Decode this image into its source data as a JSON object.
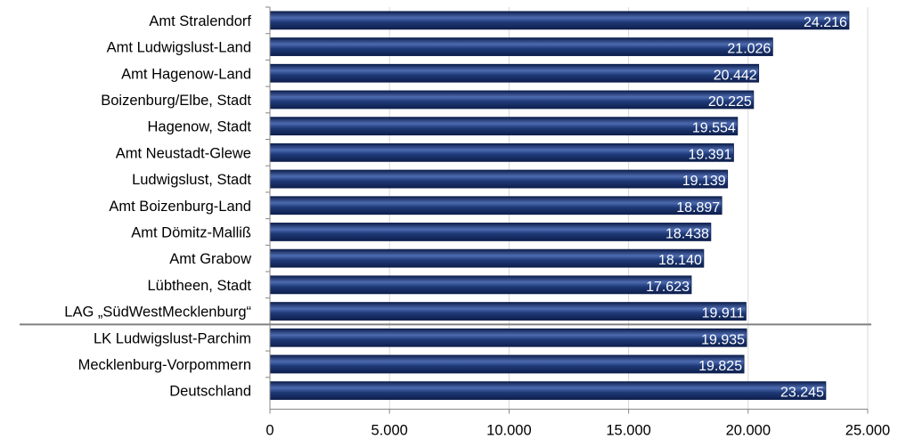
{
  "chart_data": {
    "type": "bar",
    "orientation": "horizontal",
    "categories": [
      "Amt Stralendorf",
      "Amt Ludwigslust-Land",
      "Amt Hagenow-Land",
      "Boizenburg/Elbe, Stadt",
      "Hagenow, Stadt",
      "Amt Neustadt-Glewe",
      "Ludwigslust, Stadt",
      "Amt Boizenburg-Land",
      "Amt Dömitz-Malliß",
      "Amt Grabow",
      "Lübtheen, Stadt",
      "LAG „SüdWestMecklenburg“",
      "LK Ludwigslust-Parchim",
      "Mecklenburg-Vorpommern",
      "Deutschland"
    ],
    "values": [
      24216,
      21026,
      20442,
      20225,
      19554,
      19391,
      19139,
      18897,
      18438,
      18140,
      17623,
      19911,
      19935,
      19825,
      23245
    ],
    "value_labels": [
      "24.216",
      "21.026",
      "20.442",
      "20.225",
      "19.554",
      "19.391",
      "19.139",
      "18.897",
      "18.438",
      "18.140",
      "17.623",
      "19.911",
      "19.935",
      "19.825",
      "23.245"
    ],
    "xlim": [
      0,
      25000
    ],
    "x_ticks": [
      0,
      5000,
      10000,
      15000,
      20000,
      25000
    ],
    "x_tick_labels": [
      "0",
      "5.000",
      "10.000",
      "15.000",
      "20.000",
      "25.000"
    ],
    "title": "",
    "xlabel": "",
    "ylabel": "",
    "grid": "vertical",
    "separator_after_category": "LAG „SüdWestMecklenburg“",
    "colors": {
      "bar": "#1f3a78",
      "bar_dark": "#0e1f4d",
      "bar_light": "#4d6bb0",
      "grid": "#d9d9d9",
      "axis": "#868686",
      "separator": "#808080",
      "value_label": "#ffffff"
    }
  }
}
